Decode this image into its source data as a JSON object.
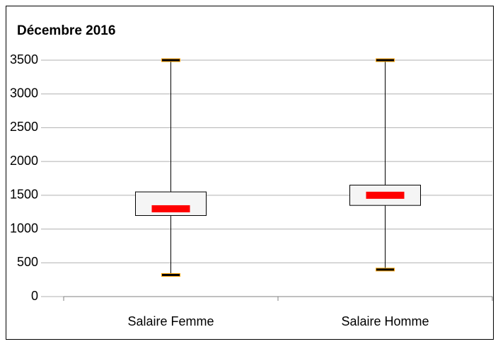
{
  "chart_data": {
    "type": "box",
    "title": "Décembre 2016",
    "categories": [
      "Salaire Femme",
      "Salaire Homme"
    ],
    "min": [
      320,
      400
    ],
    "q1": [
      1200,
      1350
    ],
    "median": [
      1300,
      1500
    ],
    "q3": [
      1550,
      1650
    ],
    "max": [
      3500,
      3500
    ],
    "box_color": "#f5f5f5",
    "median_color": "#ff0000",
    "cap_color": "#000000",
    "cap_edge_color": "#ffa500",
    "ylim": [
      0,
      3500
    ],
    "yticks": [
      0,
      500,
      1000,
      1500,
      2000,
      2500,
      3000,
      3500
    ],
    "grid": true
  }
}
